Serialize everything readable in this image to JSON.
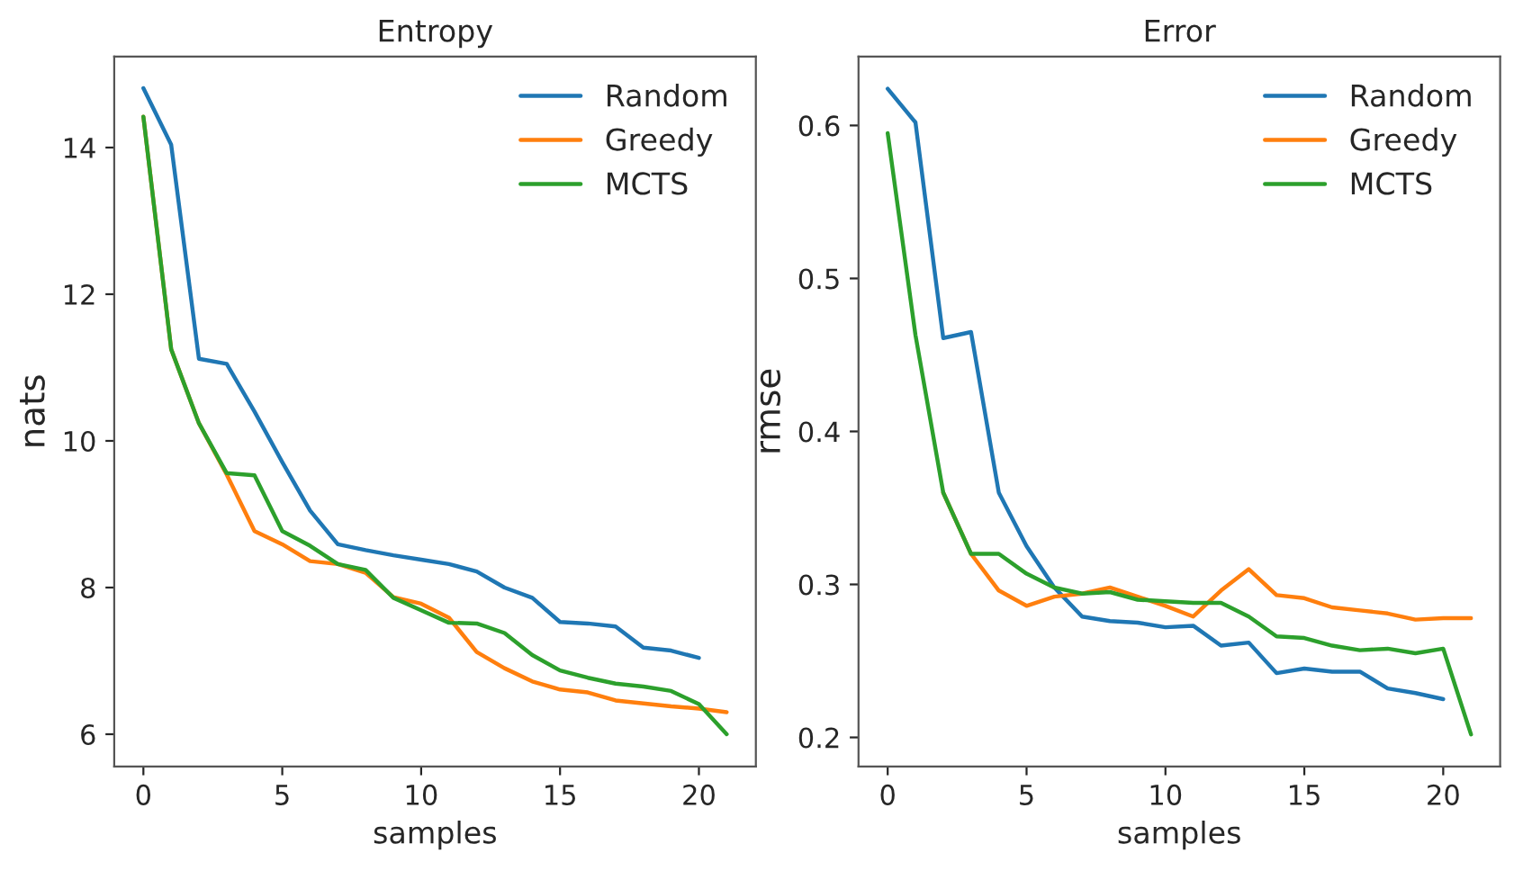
{
  "chart_data": [
    {
      "type": "line",
      "title": "Entropy",
      "xlabel": "samples",
      "ylabel": "nats",
      "xlim": [
        -1.05,
        22.05
      ],
      "ylim": [
        5.56,
        15.24
      ],
      "xticks": [
        0,
        5,
        10,
        15,
        20
      ],
      "yticks": [
        6,
        8,
        10,
        12,
        14
      ],
      "legend": "top right",
      "grid": false,
      "series": [
        {
          "name": "Random",
          "color": "#1f77b4",
          "x": [
            0,
            1,
            2,
            3,
            4,
            5,
            6,
            7,
            8,
            9,
            10,
            11,
            12,
            13,
            14,
            15,
            16,
            17,
            18,
            19,
            20
          ],
          "values": [
            14.81,
            14.04,
            11.12,
            11.05,
            10.4,
            9.71,
            9.05,
            8.59,
            8.51,
            8.44,
            8.38,
            8.32,
            8.22,
            8.0,
            7.86,
            7.53,
            7.51,
            7.47,
            7.18,
            7.14,
            7.04
          ]
        },
        {
          "name": "Greedy",
          "color": "#ff7f0e",
          "x": [
            0,
            1,
            2,
            3,
            4,
            5,
            6,
            7,
            8,
            9,
            10,
            11,
            12,
            13,
            14,
            15,
            16,
            17,
            18,
            19,
            20,
            21
          ],
          "values": [
            14.42,
            11.25,
            10.24,
            9.54,
            8.77,
            8.59,
            8.36,
            8.32,
            8.2,
            7.87,
            7.78,
            7.59,
            7.12,
            6.9,
            6.72,
            6.61,
            6.57,
            6.46,
            6.42,
            6.38,
            6.35,
            6.3
          ]
        },
        {
          "name": "MCTS",
          "color": "#2ca02c",
          "x": [
            0,
            1,
            2,
            3,
            4,
            5,
            6,
            7,
            8,
            9,
            10,
            11,
            12,
            13,
            14,
            15,
            16,
            17,
            18,
            19,
            20,
            21
          ],
          "values": [
            14.42,
            11.25,
            10.24,
            9.56,
            9.53,
            8.77,
            8.57,
            8.32,
            8.24,
            7.86,
            7.69,
            7.52,
            7.51,
            7.38,
            7.08,
            6.87,
            6.77,
            6.69,
            6.65,
            6.59,
            6.41,
            6.0
          ]
        }
      ]
    },
    {
      "type": "line",
      "title": "Error",
      "xlabel": "samples",
      "ylabel": "rmse",
      "xlim": [
        -1.05,
        22.05
      ],
      "ylim": [
        0.181,
        0.645
      ],
      "xticks": [
        0,
        5,
        10,
        15,
        20
      ],
      "yticks": [
        0.2,
        0.3,
        0.4,
        0.5,
        0.6
      ],
      "legend": "top right",
      "grid": false,
      "series": [
        {
          "name": "Random",
          "color": "#1f77b4",
          "x": [
            0,
            1,
            2,
            3,
            4,
            5,
            6,
            7,
            8,
            9,
            10,
            11,
            12,
            13,
            14,
            15,
            16,
            17,
            18,
            19,
            20
          ],
          "values": [
            0.624,
            0.602,
            0.461,
            0.465,
            0.36,
            0.325,
            0.298,
            0.279,
            0.276,
            0.275,
            0.272,
            0.273,
            0.26,
            0.262,
            0.242,
            0.245,
            0.243,
            0.243,
            0.232,
            0.229,
            0.225
          ]
        },
        {
          "name": "Greedy",
          "color": "#ff7f0e",
          "x": [
            2,
            3,
            4,
            5,
            6,
            7,
            8,
            9,
            10,
            11,
            12,
            13,
            14,
            15,
            16,
            17,
            18,
            19,
            20,
            21
          ],
          "values": [
            0.36,
            0.32,
            0.296,
            0.286,
            0.292,
            0.294,
            0.298,
            0.292,
            0.286,
            0.279,
            0.296,
            0.31,
            0.293,
            0.291,
            0.285,
            0.283,
            0.281,
            0.277,
            0.278,
            0.278
          ]
        },
        {
          "name": "MCTS",
          "color": "#2ca02c",
          "x": [
            0,
            1,
            2,
            3,
            4,
            5,
            6,
            7,
            8,
            9,
            10,
            11,
            12,
            13,
            14,
            15,
            16,
            17,
            18,
            19,
            20,
            21
          ],
          "values": [
            0.595,
            0.463,
            0.36,
            0.32,
            0.32,
            0.307,
            0.298,
            0.294,
            0.295,
            0.29,
            0.289,
            0.288,
            0.288,
            0.279,
            0.266,
            0.265,
            0.26,
            0.257,
            0.258,
            0.255,
            0.258,
            0.202
          ]
        }
      ]
    }
  ]
}
